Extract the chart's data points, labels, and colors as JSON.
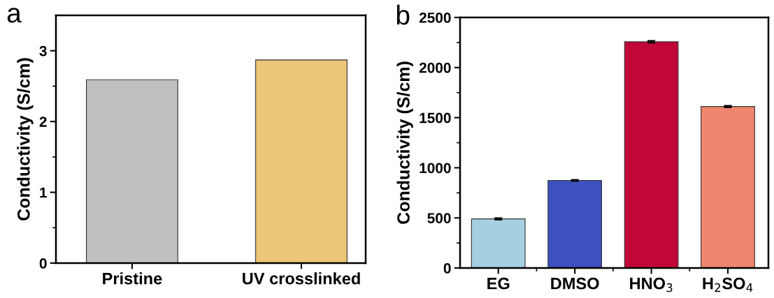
{
  "chart_data": [
    {
      "type": "bar",
      "annotations": [
        "a"
      ],
      "ylabel": "Conductivity (S/cm)",
      "categories": [
        "Pristine",
        "UV crosslinked"
      ],
      "values": [
        2.59,
        2.87
      ],
      "colors": [
        "#c0c0c0",
        "#ecc778"
      ],
      "ylim": [
        0,
        3.5
      ],
      "yticks": [
        0,
        {
          "value": 0.5,
          "label": null
        },
        1,
        {
          "value": 1.5,
          "label": null
        },
        2,
        {
          "value": 2.5,
          "label": null
        },
        3
      ],
      "grid": false,
      "legend": false
    },
    {
      "type": "bar",
      "annotations": [
        "b"
      ],
      "ylabel": "Conductivity (S/cm)",
      "categories": [
        "EG",
        "DMSO",
        "HNO$_{3}$",
        "H$_{2}$SO$_{4}$"
      ],
      "values": [
        490,
        874,
        2257,
        1611
      ],
      "colors": [
        "#a6cfe2",
        "#3d50bf",
        "#c00737",
        "#f0866e"
      ],
      "errors": [
        8,
        6,
        10,
        8
      ],
      "ylim": [
        0,
        2500
      ],
      "yticks": [
        0,
        {
          "value": 250,
          "label": null
        },
        500,
        {
          "value": 750,
          "label": null
        },
        1000,
        {
          "value": 1250,
          "label": null
        },
        1500,
        {
          "value": 1750,
          "label": null
        },
        2000,
        {
          "value": 2250,
          "label": null
        },
        2500
      ],
      "grid": false,
      "legend": false
    }
  ]
}
